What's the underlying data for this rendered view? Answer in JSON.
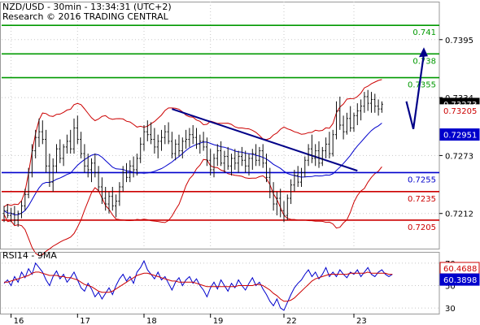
{
  "header": {
    "line1": "NZD/USD - 30min - 13:34:31 (UTC+2)",
    "line2": "Research © 2016 TRADING CENTRAL"
  },
  "chart_data": [
    {
      "type": "candlestick",
      "pair": "NZD/USD",
      "interval": "30min",
      "ylim": [
        0.7175,
        0.7435
      ],
      "y_ticks": [
        "0.7395",
        "0.7334",
        "0.7273",
        "0.7212"
      ],
      "y_tick_values": [
        0.7395,
        0.7334,
        0.7273,
        0.7212
      ],
      "x_ticks": [
        "16",
        "17",
        "18",
        "19",
        "22",
        "23"
      ],
      "x_tick_index": [
        2,
        21,
        40,
        59,
        80,
        100
      ],
      "last_price": "0.73273",
      "last_price_value": 0.73273,
      "tags": [
        {
          "text": "0.73205",
          "value": 0.73205,
          "color": "#cc0000"
        },
        {
          "text": "0.72951",
          "value": 0.72951,
          "color": "#0000cc"
        }
      ],
      "levels": [
        {
          "text": "0.741",
          "value": 0.741,
          "color": "#009900"
        },
        {
          "text": "0.738",
          "value": 0.738,
          "color": "#009900"
        },
        {
          "text": "0.7355",
          "value": 0.7355,
          "color": "#009900"
        },
        {
          "text": "0.7255",
          "value": 0.7255,
          "color": "#0000cc"
        },
        {
          "text": "0.7235",
          "value": 0.7235,
          "color": "#cc0000"
        },
        {
          "text": "0.7205",
          "value": 0.7205,
          "color": "#cc0000"
        }
      ],
      "trendline": [
        [
          48,
          0.7322
        ],
        [
          101,
          0.7257
        ]
      ],
      "projection": [
        [
          115,
          0.733
        ],
        [
          117,
          0.7301
        ],
        [
          120,
          0.738
        ]
      ],
      "ohlc": [
        [
          0.7212,
          0.722,
          0.7203,
          0.7215
        ],
        [
          0.7215,
          0.7222,
          0.7207,
          0.721
        ],
        [
          0.721,
          0.7218,
          0.7203,
          0.7212
        ],
        [
          0.7212,
          0.722,
          0.72,
          0.7205
        ],
        [
          0.7205,
          0.7215,
          0.7198,
          0.7212
        ],
        [
          0.7212,
          0.7225,
          0.7207,
          0.722
        ],
        [
          0.722,
          0.7238,
          0.7215,
          0.7232
        ],
        [
          0.7232,
          0.726,
          0.7228,
          0.7255
        ],
        [
          0.7255,
          0.7285,
          0.725,
          0.7278
        ],
        [
          0.7278,
          0.73,
          0.727,
          0.7292
        ],
        [
          0.7292,
          0.7312,
          0.7282,
          0.7298
        ],
        [
          0.7298,
          0.731,
          0.7285,
          0.729
        ],
        [
          0.729,
          0.73,
          0.7255,
          0.7262
        ],
        [
          0.7262,
          0.7275,
          0.724,
          0.7245
        ],
        [
          0.7245,
          0.727,
          0.7235,
          0.7262
        ],
        [
          0.7262,
          0.7285,
          0.7255,
          0.728
        ],
        [
          0.728,
          0.729,
          0.7265,
          0.727
        ],
        [
          0.727,
          0.7285,
          0.7262,
          0.7282
        ],
        [
          0.7282,
          0.7295,
          0.7275,
          0.7288
        ],
        [
          0.7288,
          0.73,
          0.7275,
          0.728
        ],
        [
          0.728,
          0.7312,
          0.7275,
          0.7302
        ],
        [
          0.7302,
          0.7315,
          0.7285,
          0.729
        ],
        [
          0.729,
          0.7298,
          0.727,
          0.7275
        ],
        [
          0.7275,
          0.7285,
          0.7255,
          0.7262
        ],
        [
          0.7262,
          0.7275,
          0.725,
          0.7258
        ],
        [
          0.7258,
          0.727,
          0.7245,
          0.7265
        ],
        [
          0.7265,
          0.7275,
          0.725,
          0.7255
        ],
        [
          0.7255,
          0.7262,
          0.7235,
          0.724
        ],
        [
          0.724,
          0.725,
          0.7222,
          0.7228
        ],
        [
          0.7228,
          0.724,
          0.7215,
          0.7222
        ],
        [
          0.7222,
          0.7235,
          0.7212,
          0.723
        ],
        [
          0.723,
          0.724,
          0.7215,
          0.722
        ],
        [
          0.722,
          0.7232,
          0.7208,
          0.7225
        ],
        [
          0.7225,
          0.7245,
          0.722,
          0.724
        ],
        [
          0.724,
          0.7262,
          0.7235,
          0.7255
        ],
        [
          0.7255,
          0.7265,
          0.7245,
          0.725
        ],
        [
          0.725,
          0.7268,
          0.7245,
          0.7262
        ],
        [
          0.7262,
          0.7272,
          0.725,
          0.7258
        ],
        [
          0.7258,
          0.7275,
          0.7252,
          0.727
        ],
        [
          0.727,
          0.7292,
          0.7265,
          0.7285
        ],
        [
          0.7285,
          0.7305,
          0.7278,
          0.7298
        ],
        [
          0.7298,
          0.731,
          0.7288,
          0.7295
        ],
        [
          0.7295,
          0.7308,
          0.7285,
          0.729
        ],
        [
          0.729,
          0.7302,
          0.7275,
          0.7282
        ],
        [
          0.7282,
          0.7295,
          0.727,
          0.7288
        ],
        [
          0.7288,
          0.73,
          0.7278,
          0.7292
        ],
        [
          0.7292,
          0.7305,
          0.7285,
          0.7298
        ],
        [
          0.7298,
          0.7308,
          0.7285,
          0.7288
        ],
        [
          0.7288,
          0.7298,
          0.727,
          0.7275
        ],
        [
          0.7275,
          0.729,
          0.7268,
          0.7285
        ],
        [
          0.7285,
          0.7295,
          0.7272,
          0.7278
        ],
        [
          0.7278,
          0.7292,
          0.727,
          0.7288
        ],
        [
          0.7288,
          0.73,
          0.728,
          0.729
        ],
        [
          0.729,
          0.7302,
          0.7282,
          0.7295
        ],
        [
          0.7295,
          0.7305,
          0.7285,
          0.7292
        ],
        [
          0.7292,
          0.7302,
          0.728,
          0.7285
        ],
        [
          0.7285,
          0.7295,
          0.7275,
          0.7288
        ],
        [
          0.7288,
          0.7298,
          0.7278,
          0.7282
        ],
        [
          0.7282,
          0.7292,
          0.7262,
          0.7268
        ],
        [
          0.7268,
          0.728,
          0.7252,
          0.7258
        ],
        [
          0.7258,
          0.7275,
          0.725,
          0.727
        ],
        [
          0.727,
          0.7285,
          0.7262,
          0.7278
        ],
        [
          0.7278,
          0.7288,
          0.7262,
          0.7265
        ],
        [
          0.7265,
          0.7278,
          0.7255,
          0.7272
        ],
        [
          0.7272,
          0.7282,
          0.7258,
          0.7262
        ],
        [
          0.7262,
          0.7275,
          0.7252,
          0.727
        ],
        [
          0.727,
          0.728,
          0.7258,
          0.7265
        ],
        [
          0.7265,
          0.7278,
          0.7255,
          0.7272
        ],
        [
          0.7272,
          0.7282,
          0.7262,
          0.7268
        ],
        [
          0.7268,
          0.7278,
          0.7255,
          0.7262
        ],
        [
          0.7262,
          0.7275,
          0.7252,
          0.727
        ],
        [
          0.727,
          0.728,
          0.7258,
          0.7275
        ],
        [
          0.7275,
          0.7285,
          0.7262,
          0.7268
        ],
        [
          0.7268,
          0.7282,
          0.7262,
          0.7278
        ],
        [
          0.7278,
          0.7285,
          0.726,
          0.7265
        ],
        [
          0.7265,
          0.7275,
          0.7245,
          0.725
        ],
        [
          0.725,
          0.726,
          0.7228,
          0.7235
        ],
        [
          0.7235,
          0.7245,
          0.7215,
          0.7222
        ],
        [
          0.7222,
          0.7235,
          0.721,
          0.7228
        ],
        [
          0.7228,
          0.7238,
          0.7208,
          0.7215
        ],
        [
          0.7215,
          0.7225,
          0.7203,
          0.721
        ],
        [
          0.721,
          0.7232,
          0.7205,
          0.7228
        ],
        [
          0.7228,
          0.7248,
          0.7222,
          0.7242
        ],
        [
          0.7242,
          0.7258,
          0.7235,
          0.7252
        ],
        [
          0.7252,
          0.7262,
          0.724,
          0.7245
        ],
        [
          0.7245,
          0.726,
          0.724,
          0.7255
        ],
        [
          0.7255,
          0.7272,
          0.725,
          0.7268
        ],
        [
          0.7268,
          0.7285,
          0.7262,
          0.728
        ],
        [
          0.728,
          0.7295,
          0.7265,
          0.727
        ],
        [
          0.727,
          0.7285,
          0.7262,
          0.7278
        ],
        [
          0.7278,
          0.7288,
          0.726,
          0.7265
        ],
        [
          0.7265,
          0.7282,
          0.7262,
          0.7278
        ],
        [
          0.7278,
          0.7292,
          0.727,
          0.7285
        ],
        [
          0.7285,
          0.7298,
          0.727,
          0.7275
        ],
        [
          0.7275,
          0.73,
          0.7272,
          0.7295
        ],
        [
          0.7295,
          0.733,
          0.729,
          0.732
        ],
        [
          0.732,
          0.7335,
          0.73,
          0.7305
        ],
        [
          0.7305,
          0.7315,
          0.729,
          0.7298
        ],
        [
          0.7298,
          0.7318,
          0.7295,
          0.7312
        ],
        [
          0.7312,
          0.7325,
          0.7298,
          0.7302
        ],
        [
          0.7302,
          0.7318,
          0.7298,
          0.7315
        ],
        [
          0.7315,
          0.7328,
          0.7305,
          0.732
        ],
        [
          0.732,
          0.7332,
          0.731,
          0.7325
        ],
        [
          0.7325,
          0.734,
          0.7318,
          0.7335
        ],
        [
          0.7335,
          0.7342,
          0.732,
          0.7328
        ],
        [
          0.7328,
          0.734,
          0.7318,
          0.7332
        ],
        [
          0.7332,
          0.7338,
          0.7318,
          0.7325
        ],
        [
          0.7325,
          0.7332,
          0.7315,
          0.7322
        ],
        [
          0.7322,
          0.733,
          0.7318,
          0.7327
        ]
      ]
    },
    {
      "type": "line",
      "label": "RSI14 - 9MA",
      "ylim": [
        25,
        80
      ],
      "y_ticks": [
        "70",
        "50",
        "30"
      ],
      "y_tick_values": [
        70,
        50,
        30
      ],
      "tags": [
        {
          "text": "60.4688",
          "value": 60.4688,
          "color": "#cc0000"
        },
        {
          "text": "60.3898",
          "value": 60.3898,
          "color": "#0000cc"
        }
      ],
      "series": [
        {
          "color": "#0000cc",
          "values": [
            52,
            55,
            50,
            58,
            53,
            62,
            57,
            65,
            60,
            70,
            66,
            62,
            55,
            50,
            58,
            63,
            56,
            60,
            53,
            57,
            62,
            55,
            48,
            45,
            52,
            47,
            40,
            44,
            38,
            43,
            48,
            42,
            50,
            56,
            60,
            54,
            58,
            52,
            62,
            66,
            72,
            64,
            60,
            56,
            62,
            55,
            58,
            52,
            46,
            53,
            57,
            50,
            55,
            58,
            52,
            56,
            50,
            46,
            40,
            48,
            53,
            47,
            55,
            50,
            45,
            52,
            48,
            55,
            50,
            46,
            52,
            57,
            50,
            53,
            47,
            42,
            36,
            32,
            38,
            30,
            28,
            35,
            42,
            48,
            52,
            55,
            60,
            64,
            58,
            62,
            56,
            60,
            66,
            58,
            62,
            58,
            64,
            60,
            57,
            62,
            60,
            64,
            58,
            62,
            66,
            60,
            58,
            62,
            64,
            60,
            58,
            60
          ]
        },
        {
          "color": "#cc0000",
          "values": [
            53,
            53,
            54,
            55,
            56,
            57,
            58,
            59,
            61,
            62,
            62,
            61,
            60,
            59,
            59,
            59,
            58,
            58,
            57,
            57,
            56,
            55,
            53,
            51,
            50,
            49,
            47,
            45,
            44,
            44,
            44,
            45,
            47,
            49,
            51,
            53,
            55,
            57,
            59,
            60,
            61,
            61,
            60,
            59,
            58,
            57,
            56,
            55,
            54,
            54,
            53,
            53,
            53,
            53,
            53,
            52,
            51,
            50,
            49,
            49,
            49,
            49,
            49,
            49,
            49,
            49,
            49,
            50,
            50,
            50,
            50,
            50,
            51,
            51,
            50,
            48,
            46,
            43,
            41,
            38,
            36,
            36,
            37,
            39,
            42,
            45,
            48,
            51,
            54,
            56,
            57,
            58,
            59,
            60,
            60,
            60,
            60,
            60,
            60,
            61,
            61,
            61,
            61,
            61,
            62,
            61,
            61,
            61,
            61,
            61,
            60,
            60
          ]
        }
      ]
    }
  ]
}
